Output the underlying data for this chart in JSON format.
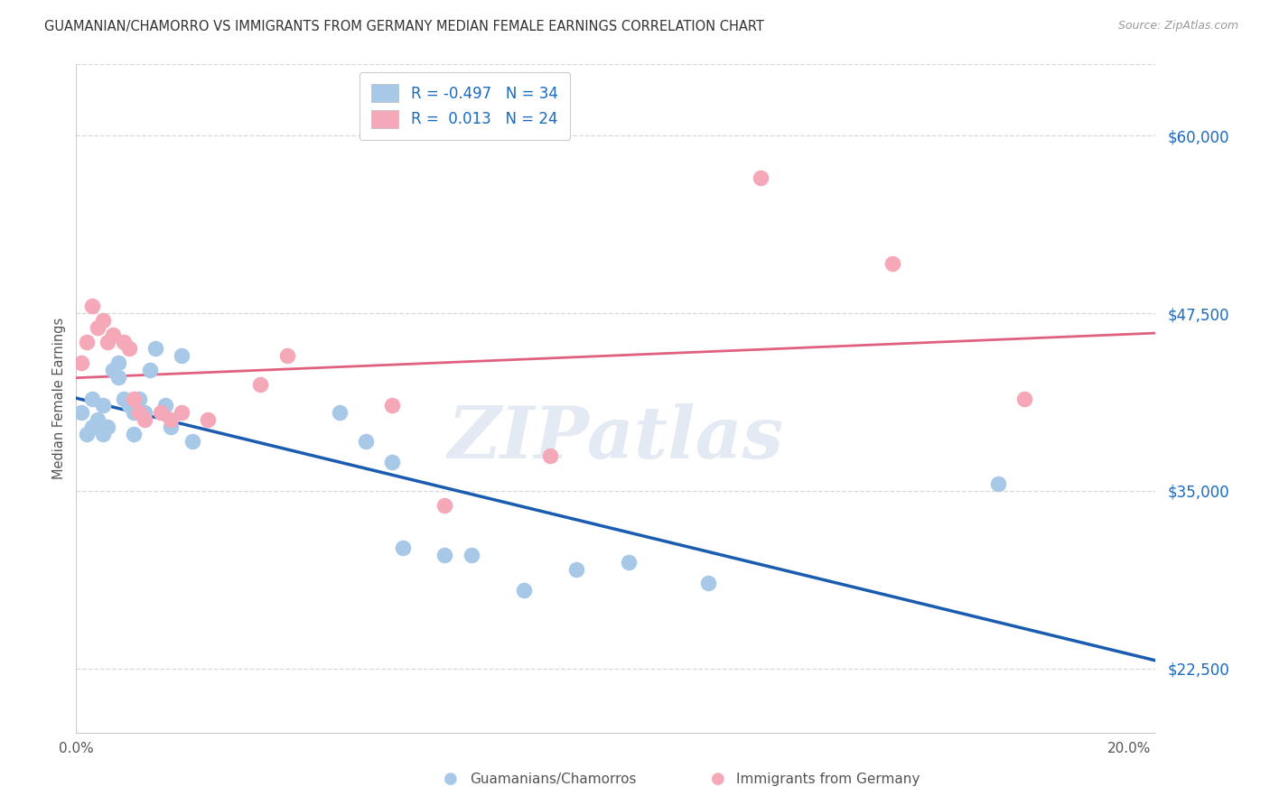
{
  "title": "GUAMANIAN/CHAMORRO VS IMMIGRANTS FROM GERMANY MEDIAN FEMALE EARNINGS CORRELATION CHART",
  "source": "Source: ZipAtlas.com",
  "ylabel": "Median Female Earnings",
  "xlim": [
    0.0,
    0.205
  ],
  "ylim": [
    18000,
    65000
  ],
  "yticks": [
    22500,
    35000,
    47500,
    60000
  ],
  "ytick_labels": [
    "$22,500",
    "$35,000",
    "$47,500",
    "$60,000"
  ],
  "xticks": [
    0.0,
    0.05,
    0.1,
    0.15,
    0.2
  ],
  "xtick_labels": [
    "0.0%",
    "",
    "",
    "",
    "20.0%"
  ],
  "background_color": "#ffffff",
  "grid_color": "#d8d8d8",
  "watermark": "ZIPatlas",
  "legend_R_blue": "-0.497",
  "legend_N_blue": "34",
  "legend_R_pink": "0.013",
  "legend_N_pink": "24",
  "blue_scatter_color": "#a8c8e8",
  "pink_scatter_color": "#f4a8b8",
  "blue_line_color": "#1a5cb0",
  "pink_line_color": "#e06080",
  "guamanians_x": [
    0.001,
    0.002,
    0.003,
    0.003,
    0.004,
    0.005,
    0.005,
    0.006,
    0.007,
    0.008,
    0.008,
    0.009,
    0.01,
    0.011,
    0.011,
    0.012,
    0.013,
    0.014,
    0.015,
    0.017,
    0.018,
    0.02,
    0.022,
    0.05,
    0.055,
    0.06,
    0.062,
    0.07,
    0.075,
    0.085,
    0.095,
    0.105,
    0.12,
    0.175
  ],
  "guamanians_y": [
    40500,
    39000,
    41500,
    39500,
    40000,
    41000,
    39000,
    39500,
    43500,
    44000,
    43000,
    41500,
    41000,
    40500,
    39000,
    41500,
    40500,
    43500,
    45000,
    41000,
    39500,
    44500,
    38500,
    40500,
    38500,
    37000,
    31000,
    30500,
    30500,
    28000,
    29500,
    30000,
    28500,
    35500
  ],
  "germany_x": [
    0.001,
    0.002,
    0.003,
    0.004,
    0.005,
    0.006,
    0.007,
    0.009,
    0.01,
    0.011,
    0.012,
    0.013,
    0.016,
    0.018,
    0.02,
    0.025,
    0.035,
    0.04,
    0.06,
    0.07,
    0.09,
    0.13,
    0.155,
    0.18
  ],
  "germany_y": [
    44000,
    45500,
    48000,
    46500,
    47000,
    45500,
    46000,
    45500,
    45000,
    41500,
    40500,
    40000,
    40500,
    40000,
    40500,
    40000,
    42500,
    44500,
    41000,
    34000,
    37500,
    57000,
    51000,
    41500
  ]
}
